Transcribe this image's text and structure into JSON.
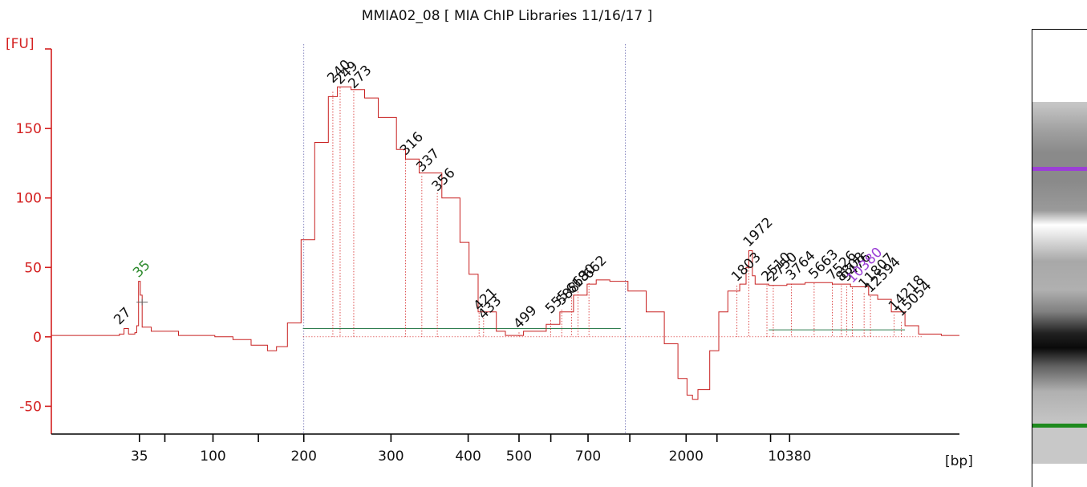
{
  "chart_data": {
    "type": "line",
    "title": "MMIA02_08  [ MIA ChIP Libraries 11/16/17 ]",
    "ylabel": "[FU]",
    "xlabel": "[bp]",
    "ylim": [
      -70,
      205
    ],
    "yticks": [
      -50,
      0,
      50,
      100,
      150
    ],
    "x_scale": "piecewise-logarithmic",
    "xticks": [
      {
        "label": "35",
        "pos": 0.097
      },
      {
        "label": "100",
        "pos": 0.178
      },
      {
        "label": "200",
        "pos": 0.278
      },
      {
        "label": "300",
        "pos": 0.374
      },
      {
        "label": "400",
        "pos": 0.459
      },
      {
        "label": "500",
        "pos": 0.515
      },
      {
        "label": "700",
        "pos": 0.591
      },
      {
        "label": "2000",
        "pos": 0.699
      },
      {
        "label": "10380",
        "pos": 0.813
      }
    ],
    "minor_ticks": [
      0.125,
      0.228,
      0.55,
      0.637,
      0.733,
      0.792
    ],
    "series": [
      {
        "color": "#c82020",
        "points": [
          [
            0.0,
            1
          ],
          [
            0.03,
            1
          ],
          [
            0.06,
            1
          ],
          [
            0.075,
            2
          ],
          [
            0.08,
            6
          ],
          [
            0.085,
            2
          ],
          [
            0.092,
            3
          ],
          [
            0.094,
            8
          ],
          [
            0.096,
            40
          ],
          [
            0.098,
            30
          ],
          [
            0.1,
            7
          ],
          [
            0.11,
            4
          ],
          [
            0.14,
            1
          ],
          [
            0.18,
            0
          ],
          [
            0.2,
            -2
          ],
          [
            0.22,
            -6
          ],
          [
            0.238,
            -10
          ],
          [
            0.248,
            -7
          ],
          [
            0.26,
            10
          ],
          [
            0.275,
            70
          ],
          [
            0.29,
            140
          ],
          [
            0.305,
            173
          ],
          [
            0.315,
            180
          ],
          [
            0.33,
            178
          ],
          [
            0.345,
            172
          ],
          [
            0.36,
            158
          ],
          [
            0.38,
            135
          ],
          [
            0.39,
            128
          ],
          [
            0.405,
            118
          ],
          [
            0.43,
            100
          ],
          [
            0.45,
            68
          ],
          [
            0.46,
            45
          ],
          [
            0.47,
            18
          ],
          [
            0.49,
            4
          ],
          [
            0.5,
            1
          ],
          [
            0.52,
            4
          ],
          [
            0.545,
            9
          ],
          [
            0.56,
            18
          ],
          [
            0.575,
            30
          ],
          [
            0.59,
            38
          ],
          [
            0.6,
            41
          ],
          [
            0.615,
            40
          ],
          [
            0.635,
            33
          ],
          [
            0.655,
            18
          ],
          [
            0.675,
            -5
          ],
          [
            0.69,
            -30
          ],
          [
            0.7,
            -42
          ],
          [
            0.706,
            -45
          ],
          [
            0.712,
            -38
          ],
          [
            0.725,
            -10
          ],
          [
            0.735,
            18
          ],
          [
            0.745,
            33
          ],
          [
            0.758,
            38
          ],
          [
            0.765,
            50
          ],
          [
            0.768,
            62
          ],
          [
            0.772,
            44
          ],
          [
            0.775,
            38
          ],
          [
            0.79,
            37
          ],
          [
            0.81,
            38
          ],
          [
            0.83,
            39
          ],
          [
            0.86,
            38
          ],
          [
            0.88,
            36
          ],
          [
            0.9,
            30
          ],
          [
            0.91,
            27
          ],
          [
            0.925,
            18
          ],
          [
            0.94,
            8
          ],
          [
            0.955,
            2
          ],
          [
            0.98,
            1
          ],
          [
            1.0,
            1
          ]
        ]
      }
    ],
    "baseline_segments": [
      {
        "x0": 0.277,
        "x1": 0.627,
        "y": 6,
        "color": "#2e7d4f"
      },
      {
        "x0": 0.79,
        "x1": 0.94,
        "y": 5,
        "color": "#2e7d4f"
      }
    ],
    "markers": [
      {
        "x": 0.1,
        "y": 25
      }
    ],
    "peaks": [
      {
        "label": "27",
        "x": 0.075,
        "y": 6,
        "color": "#111111"
      },
      {
        "label": "35",
        "x": 0.096,
        "y": 40,
        "color": "#2e8b2e"
      },
      {
        "label": "240",
        "x": 0.31,
        "y": 180,
        "color": "#111111"
      },
      {
        "label": "249",
        "x": 0.318,
        "y": 179,
        "color": "#111111"
      },
      {
        "label": "273",
        "x": 0.333,
        "y": 176,
        "color": "#111111"
      },
      {
        "label": "316",
        "x": 0.39,
        "y": 128,
        "color": "#111111"
      },
      {
        "label": "337",
        "x": 0.408,
        "y": 116,
        "color": "#111111"
      },
      {
        "label": "356",
        "x": 0.425,
        "y": 102,
        "color": "#111111"
      },
      {
        "label": "421",
        "x": 0.471,
        "y": 16,
        "color": "#111111"
      },
      {
        "label": "433",
        "x": 0.476,
        "y": 10,
        "color": "#111111"
      },
      {
        "label": "499",
        "x": 0.515,
        "y": 3,
        "color": "#111111"
      },
      {
        "label": "555",
        "x": 0.55,
        "y": 14,
        "color": "#111111"
      },
      {
        "label": "588",
        "x": 0.562,
        "y": 20,
        "color": "#111111"
      },
      {
        "label": "618",
        "x": 0.573,
        "y": 28,
        "color": "#111111"
      },
      {
        "label": "630",
        "x": 0.58,
        "y": 33,
        "color": "#111111"
      },
      {
        "label": "662",
        "x": 0.592,
        "y": 39,
        "color": "#111111"
      },
      {
        "label": "1803",
        "x": 0.755,
        "y": 37,
        "color": "#111111"
      },
      {
        "label": "1972",
        "x": 0.768,
        "y": 62,
        "color": "#111111"
      },
      {
        "label": "2510",
        "x": 0.788,
        "y": 37,
        "color": "#111111"
      },
      {
        "label": "2750",
        "x": 0.795,
        "y": 37,
        "color": "#111111"
      },
      {
        "label": "3764",
        "x": 0.815,
        "y": 38,
        "color": "#111111"
      },
      {
        "label": "5663",
        "x": 0.84,
        "y": 39,
        "color": "#111111"
      },
      {
        "label": "7526",
        "x": 0.86,
        "y": 38,
        "color": "#111111"
      },
      {
        "label": "8808",
        "x": 0.87,
        "y": 37,
        "color": "#111111"
      },
      {
        "label": "9476",
        "x": 0.876,
        "y": 37,
        "color": "#111111"
      },
      {
        "label": "10380",
        "x": 0.882,
        "y": 36,
        "color": "#9b3fd6"
      },
      {
        "label": "11807",
        "x": 0.895,
        "y": 32,
        "color": "#111111"
      },
      {
        "label": "12594",
        "x": 0.902,
        "y": 29,
        "color": "#111111"
      },
      {
        "label": "14218",
        "x": 0.928,
        "y": 16,
        "color": "#111111"
      },
      {
        "label": "15054",
        "x": 0.936,
        "y": 12,
        "color": "#111111"
      }
    ],
    "region_lines": [
      0.278,
      0.632
    ],
    "gel": {
      "lane_gradient": [
        {
          "stop": 0,
          "shade": "#c8c8c8"
        },
        {
          "stop": 8,
          "shade": "#a0a0a0"
        },
        {
          "stop": 14,
          "shade": "#8a8a8a"
        },
        {
          "stop": 22,
          "shade": "#8a8a8a"
        },
        {
          "stop": 30,
          "shade": "#9a9a9a"
        },
        {
          "stop": 34,
          "shade": "#ffffff"
        },
        {
          "stop": 44,
          "shade": "#a8a8a8"
        },
        {
          "stop": 52,
          "shade": "#b0b0b0"
        },
        {
          "stop": 58,
          "shade": "#808080"
        },
        {
          "stop": 64,
          "shade": "#202020"
        },
        {
          "stop": 68,
          "shade": "#0a0a0a"
        },
        {
          "stop": 73,
          "shade": "#606060"
        },
        {
          "stop": 80,
          "shade": "#b0b0b0"
        },
        {
          "stop": 90,
          "shade": "#c8c8c8"
        },
        {
          "stop": 100,
          "shade": "#c8c8c8"
        }
      ],
      "bands": [
        {
          "name": "upper-marker",
          "position": 0.18,
          "color": "#9b3fd6"
        },
        {
          "name": "lower-marker",
          "position": 0.89,
          "color": "#1e8a1e"
        }
      ]
    }
  }
}
